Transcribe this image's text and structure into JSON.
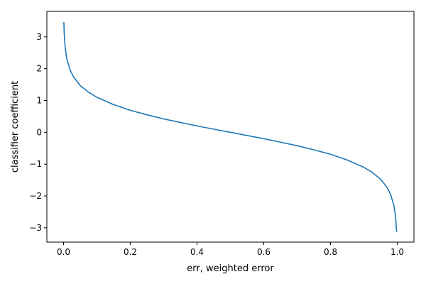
{
  "chart_data": {
    "type": "line",
    "title": "",
    "xlabel": "err, weighted error",
    "ylabel": "classifier coefficient",
    "xlim": [
      -0.05,
      1.05
    ],
    "ylim": [
      -3.45,
      3.8
    ],
    "xticks": [
      0.0,
      0.2,
      0.4,
      0.6,
      0.8,
      1.0
    ],
    "xtick_labels": [
      "0.0",
      "0.2",
      "0.4",
      "0.6",
      "0.8",
      "1.0"
    ],
    "yticks": [
      3,
      2,
      1,
      0,
      -1,
      -2,
      -3
    ],
    "ytick_labels": [
      "3",
      "2",
      "1",
      "0",
      "−1",
      "−2",
      "−3"
    ],
    "grid": false,
    "legend": "none",
    "series": [
      {
        "color": "#1f77b4",
        "x": [
          0.001,
          0.002,
          0.005,
          0.01,
          0.02,
          0.03,
          0.05,
          0.075,
          0.1,
          0.15,
          0.2,
          0.25,
          0.3,
          0.35,
          0.4,
          0.45,
          0.5,
          0.55,
          0.6,
          0.65,
          0.7,
          0.75,
          0.8,
          0.85,
          0.9,
          0.925,
          0.95,
          0.97,
          0.98,
          0.99,
          0.995,
          0.998,
          0.999
        ],
        "y": [
          3.45,
          3.11,
          2.65,
          2.3,
          1.95,
          1.74,
          1.47,
          1.26,
          1.1,
          0.87,
          0.69,
          0.55,
          0.42,
          0.31,
          0.2,
          0.1,
          0.0,
          -0.1,
          -0.2,
          -0.31,
          -0.42,
          -0.55,
          -0.69,
          -0.87,
          -1.1,
          -1.26,
          -1.47,
          -1.74,
          -1.95,
          -2.3,
          -2.65,
          -3.11,
          -3.11
        ]
      }
    ]
  }
}
